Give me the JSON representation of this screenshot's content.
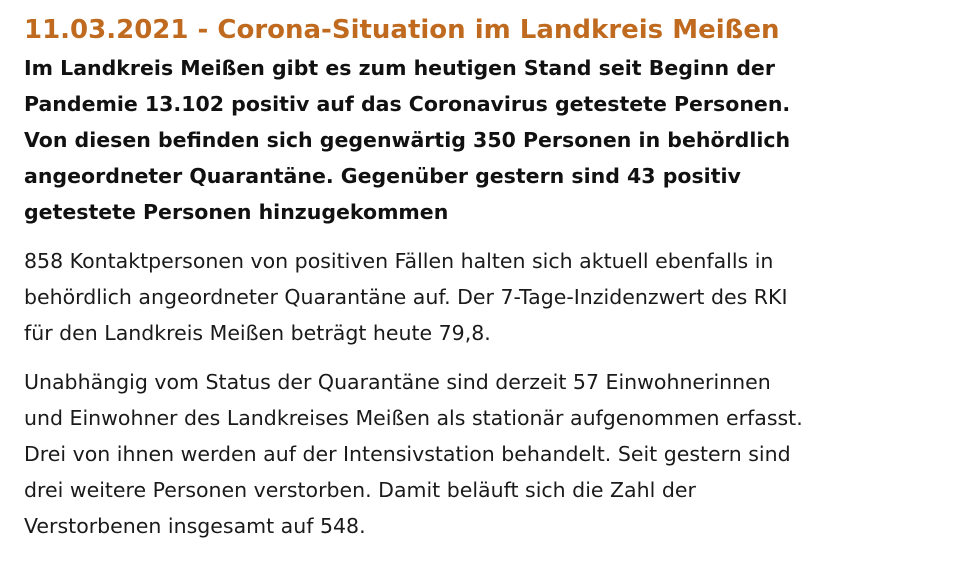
{
  "article": {
    "title": "11.03.2021 - Corona-Situation im Landkreis Meißen",
    "lead_lines": [
      "Im Landkreis Meißen gibt es zum heutigen Stand seit Beginn der",
      "Pandemie 13.102 positiv auf das Coronavirus getestete Personen.",
      "Von diesen befinden sich gegenwärtig 350 Personen in behördlich",
      "angeordneter Quarantäne. Gegenüber gestern sind 43 positiv",
      "getestete Personen hinzugekommen"
    ],
    "paragraph1_lines": [
      "858 Kontaktpersonen von positiven Fällen halten sich aktuell ebenfalls in",
      "behördlich angeordneter Quarantäne auf. Der 7-Tage-Inzidenzwert des RKI",
      "für den Landkreis Meißen beträgt heute 79,8."
    ],
    "paragraph2_lines": [
      "Unabhängig vom Status der Quarantäne sind derzeit 57 Einwohnerinnen",
      "und Einwohner des Landkreises Meißen als stationär aufgenommen erfasst.",
      "Drei von ihnen werden auf der Intensivstation behandelt. Seit gestern sind",
      "drei weitere Personen verstorben. Damit beläuft sich die Zahl der",
      "Verstorbenen insgesamt auf 548."
    ]
  },
  "colors": {
    "title": "#bf6a1f",
    "text": "#111111"
  }
}
